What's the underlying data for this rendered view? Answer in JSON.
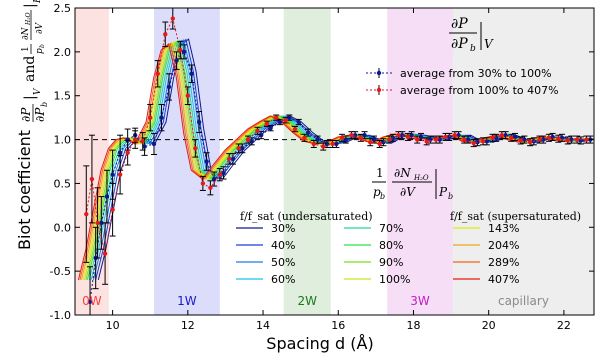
{
  "chart_data": {
    "type": "line",
    "xlabel": "Spacing d (Å)",
    "ylabel": "Biot coefficient",
    "xlim": [
      9,
      22.8
    ],
    "ylim": [
      -1.0,
      2.5
    ],
    "xticks": [
      10,
      12,
      14,
      16,
      18,
      20,
      22
    ],
    "yticks": [
      -1.0,
      -0.5,
      0.0,
      0.5,
      1.0,
      1.5,
      2.0,
      2.5
    ],
    "reference_line": 1.0,
    "regions": [
      {
        "label": "0W",
        "x0": 9.0,
        "x1": 9.9,
        "color": "#fde2e2",
        "text_color": "#ff3b3b"
      },
      {
        "label": "1W",
        "x0": 11.1,
        "x1": 12.85,
        "color": "#dcdcfb",
        "text_color": "#1a1acc"
      },
      {
        "label": "2W",
        "x0": 14.55,
        "x1": 15.8,
        "color": "#dfeedd",
        "text_color": "#1a7a1a"
      },
      {
        "label": "3W",
        "x0": 17.3,
        "x1": 19.05,
        "color": "#f6dff6",
        "text_color": "#c21cc2"
      },
      {
        "label": "capillary",
        "x0": 19.05,
        "x1": 22.8,
        "color": "#eeeeee",
        "text_color": "#8a8a8a"
      }
    ],
    "legend_undersaturated_title": "f/f_sat (undersaturated)",
    "legend_supersaturated_title": "f/f_sat (supersaturated)",
    "series": [
      {
        "name": "30%",
        "color": "#0d1a8f",
        "shift": 0.32
      },
      {
        "name": "40%",
        "color": "#1c3fd6",
        "shift": 0.25
      },
      {
        "name": "50%",
        "color": "#1a7ee0",
        "shift": 0.19
      },
      {
        "name": "60%",
        "color": "#19c4e6",
        "shift": 0.13
      },
      {
        "name": "70%",
        "color": "#22d69a",
        "shift": 0.08
      },
      {
        "name": "80%",
        "color": "#2ee04a",
        "shift": 0.03
      },
      {
        "name": "90%",
        "color": "#76e01a",
        "shift": -0.01
      },
      {
        "name": "100%",
        "color": "#c3e620",
        "shift": -0.05
      },
      {
        "name": "143%",
        "color": "#e6e61a",
        "shift": -0.09
      },
      {
        "name": "204%",
        "color": "#f0a51a",
        "shift": -0.13
      },
      {
        "name": "289%",
        "color": "#f0641a",
        "shift": -0.17
      },
      {
        "name": "407%",
        "color": "#e61a1a",
        "shift": -0.21
      }
    ],
    "base_curve": {
      "x": [
        9.3,
        9.5,
        9.7,
        9.9,
        10.1,
        10.3,
        10.5,
        10.8,
        11.1,
        11.3,
        11.5,
        11.7,
        11.9,
        12.1,
        12.3,
        12.6,
        12.9,
        13.2,
        13.5,
        13.8,
        14.1,
        14.4,
        14.7,
        15.0,
        15.3,
        15.6,
        15.9,
        16.2,
        16.5,
        16.8,
        17.1,
        17.4,
        17.7,
        18.0,
        18.3,
        18.6,
        18.9,
        19.2,
        19.5,
        19.8,
        20.1,
        20.4,
        20.7,
        21.0,
        21.3,
        21.6,
        21.9,
        22.2,
        22.5,
        22.8
      ],
      "y": [
        -0.6,
        -0.25,
        0.2,
        0.65,
        0.9,
        1.0,
        1.02,
        0.95,
        1.2,
        1.7,
        2.05,
        2.12,
        1.75,
        1.1,
        0.65,
        0.55,
        0.72,
        0.88,
        1.0,
        1.12,
        1.2,
        1.27,
        1.2,
        1.08,
        0.98,
        0.95,
        0.97,
        1.03,
        1.05,
        1.0,
        0.96,
        1.03,
        1.06,
        1.05,
        1.02,
        1.0,
        1.03,
        1.05,
        0.98,
        0.97,
        1.02,
        1.05,
        1.0,
        0.97,
        1.01,
        1.03,
        1.0,
        0.98,
        1.01,
        1.0
      ]
    },
    "average_under": {
      "name": "average from 30% to 100%",
      "color": "#0d1a8f",
      "x": [
        9.4,
        9.55,
        9.7,
        9.85,
        10.0,
        10.2,
        10.4,
        10.6,
        10.85,
        11.1,
        11.3,
        11.5,
        11.7,
        11.9,
        12.1,
        12.3,
        12.5,
        12.7,
        12.95,
        13.2,
        13.45,
        13.7,
        13.95,
        14.2,
        14.45,
        14.7,
        14.95,
        15.2,
        15.45,
        15.7,
        15.95,
        16.2,
        16.45,
        16.7,
        16.95,
        17.2,
        17.45,
        17.7,
        17.95,
        18.2,
        18.45,
        18.7,
        18.95,
        19.2,
        19.45,
        19.7,
        19.95,
        20.2,
        20.45,
        20.7,
        20.95,
        21.2,
        21.45,
        21.7,
        21.95,
        22.2,
        22.45,
        22.7
      ],
      "y": [
        -0.85,
        -0.35,
        0.05,
        0.35,
        0.6,
        0.85,
        1.0,
        1.05,
        0.92,
        0.95,
        1.25,
        1.6,
        1.9,
        2.0,
        1.75,
        1.2,
        0.75,
        0.55,
        0.62,
        0.78,
        0.9,
        0.98,
        1.05,
        1.13,
        1.2,
        1.25,
        1.2,
        1.08,
        1.0,
        0.95,
        0.95,
        1.0,
        1.05,
        1.05,
        1.0,
        0.97,
        1.02,
        1.05,
        1.05,
        1.03,
        1.0,
        1.0,
        1.03,
        1.05,
        1.0,
        0.97,
        0.98,
        1.02,
        1.05,
        1.03,
        1.0,
        0.98,
        1.0,
        1.03,
        1.02,
        1.0,
        0.99,
        1.0
      ],
      "err": [
        0.4,
        0.35,
        0.3,
        0.3,
        0.28,
        0.2,
        0.12,
        0.08,
        0.1,
        0.12,
        0.15,
        0.15,
        0.1,
        0.08,
        0.1,
        0.12,
        0.1,
        0.08,
        0.07,
        0.06,
        0.05,
        0.04,
        0.04,
        0.03,
        0.03,
        0.03,
        0.03,
        0.04,
        0.04,
        0.04,
        0.04,
        0.04,
        0.04,
        0.04,
        0.04,
        0.04,
        0.04,
        0.04,
        0.04,
        0.04,
        0.04,
        0.04,
        0.04,
        0.04,
        0.04,
        0.04,
        0.04,
        0.04,
        0.04,
        0.04,
        0.04,
        0.04,
        0.04,
        0.04,
        0.04,
        0.04,
        0.04,
        0.04
      ]
    },
    "average_super": {
      "name": "average from 100% to 407%",
      "color": "#e61a1a",
      "x": [
        9.3,
        9.45,
        9.6,
        9.8,
        10.0,
        10.2,
        10.4,
        10.6,
        10.8,
        11.0,
        11.2,
        11.4,
        11.6,
        11.8,
        12.0,
        12.2,
        12.4,
        12.6,
        12.85,
        13.1,
        13.35,
        13.6,
        13.85,
        14.1,
        14.35,
        14.6,
        14.85,
        15.1,
        15.35,
        15.6,
        15.85,
        16.1,
        16.35,
        16.6,
        16.85,
        17.1,
        17.35,
        17.6,
        17.85,
        18.1,
        18.35,
        18.6,
        18.85,
        19.1,
        19.35,
        19.6,
        19.85,
        20.1,
        20.35,
        20.6,
        20.85,
        21.1,
        21.35,
        21.6,
        21.85,
        22.1,
        22.35,
        22.6
      ],
      "y": [
        0.15,
        0.55,
        0.05,
        -0.3,
        0.2,
        0.6,
        0.85,
        1.0,
        0.98,
        1.25,
        1.75,
        2.2,
        2.38,
        2.02,
        1.5,
        0.9,
        0.5,
        0.45,
        0.6,
        0.78,
        0.9,
        1.0,
        1.1,
        1.18,
        1.25,
        1.22,
        1.12,
        1.02,
        0.95,
        0.92,
        0.95,
        1.02,
        1.05,
        1.02,
        0.97,
        0.95,
        1.0,
        1.05,
        1.03,
        1.0,
        0.98,
        1.0,
        1.03,
        1.05,
        1.0,
        0.96,
        0.98,
        1.02,
        1.05,
        1.02,
        0.99,
        0.97,
        1.0,
        1.02,
        1.01,
        0.99,
        1.0,
        1.0
      ],
      "err": [
        0.55,
        0.5,
        0.4,
        0.35,
        0.3,
        0.22,
        0.14,
        0.1,
        0.1,
        0.15,
        0.15,
        0.14,
        0.12,
        0.1,
        0.1,
        0.1,
        0.08,
        0.08,
        0.07,
        0.06,
        0.05,
        0.04,
        0.04,
        0.03,
        0.03,
        0.03,
        0.03,
        0.04,
        0.04,
        0.04,
        0.04,
        0.04,
        0.04,
        0.04,
        0.04,
        0.04,
        0.04,
        0.04,
        0.04,
        0.04,
        0.04,
        0.04,
        0.04,
        0.04,
        0.04,
        0.04,
        0.04,
        0.04,
        0.04,
        0.04,
        0.04,
        0.04,
        0.04,
        0.04,
        0.04,
        0.04,
        0.04,
        0.04
      ]
    }
  }
}
